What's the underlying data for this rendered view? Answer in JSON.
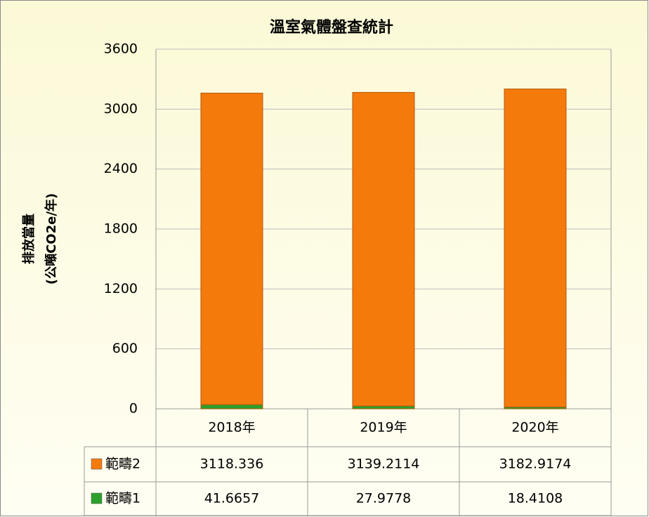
{
  "chart_data": {
    "type": "bar",
    "stacked": true,
    "title": "溫室氣體盤查統計",
    "y_label": [
      "排放當量",
      "(公噸CO2e/年)"
    ],
    "categories": [
      "2018年",
      "2019年",
      "2020年"
    ],
    "series": [
      {
        "name": "範疇2",
        "color": "#f57a0c",
        "values": [
          3118.336,
          3139.2114,
          3182.9174
        ]
      },
      {
        "name": "範疇1",
        "color": "#2ca02c",
        "values": [
          41.6657,
          27.9778,
          18.4108
        ]
      }
    ],
    "ylim": [
      0,
      3600
    ],
    "yticks": [
      0,
      600,
      1200,
      1800,
      2400,
      3000,
      3600
    ],
    "grid": true
  }
}
